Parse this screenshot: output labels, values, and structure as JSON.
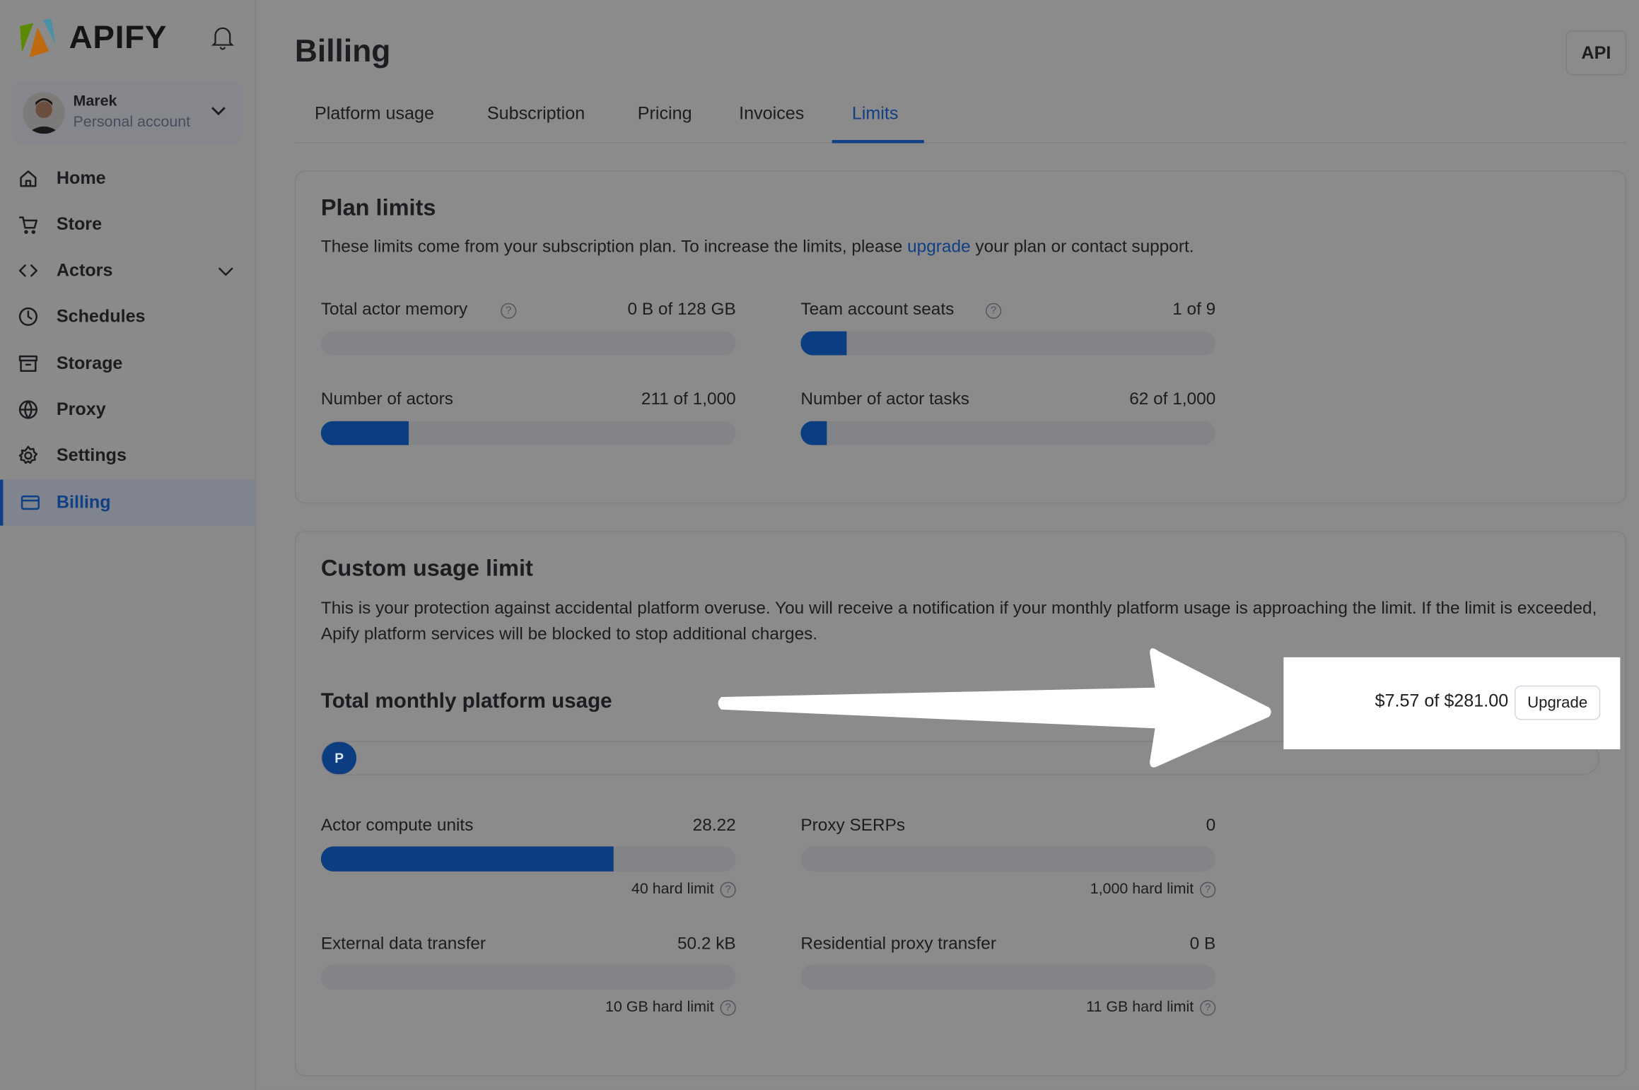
{
  "app": {
    "logo_text": "APIFY",
    "logo_colors": [
      "#5b8a00",
      "#c06a10",
      "#4a91a8"
    ]
  },
  "account": {
    "name": "Marek",
    "type": "Personal account"
  },
  "sidebar": {
    "items": [
      {
        "label": "Home",
        "icon": "home-icon"
      },
      {
        "label": "Store",
        "icon": "cart-icon"
      },
      {
        "label": "Actors",
        "icon": "code-icon",
        "expandable": true
      },
      {
        "label": "Schedules",
        "icon": "clock-icon"
      },
      {
        "label": "Storage",
        "icon": "archive-icon"
      },
      {
        "label": "Proxy",
        "icon": "globe-icon"
      },
      {
        "label": "Settings",
        "icon": "gear-icon"
      },
      {
        "label": "Billing",
        "icon": "credit-card-icon",
        "active": true
      }
    ]
  },
  "header": {
    "title": "Billing",
    "api_label": "API"
  },
  "tabs": [
    {
      "label": "Platform usage"
    },
    {
      "label": "Subscription"
    },
    {
      "label": "Pricing"
    },
    {
      "label": "Invoices"
    },
    {
      "label": "Limits",
      "active": true
    }
  ],
  "plan_limits": {
    "title": "Plan limits",
    "desc_before": "These limits come from your subscription plan. To increase the limits, please ",
    "desc_link": "upgrade",
    "desc_after": " your plan or contact support.",
    "items": [
      {
        "label": "Total actor memory",
        "value": "0 B of 128 GB",
        "percent": 0,
        "help": true
      },
      {
        "label": "Team account seats",
        "value": "1 of 9",
        "percent": 11.1,
        "help": true
      },
      {
        "label": "Number of actors",
        "value": "211 of 1,000",
        "percent": 21.1
      },
      {
        "label": "Number of actor tasks",
        "value": "62 of 1,000",
        "percent": 6.2
      }
    ]
  },
  "custom_limit": {
    "title": "Custom usage limit",
    "desc": "This is your protection against accidental platform overuse. You will receive a notification if your monthly platform usage is approaching the limit. If the limit is exceeded, Apify platform services will be blocked to stop additional charges.",
    "total_label": "Total monthly platform usage",
    "total_value": "$7.57 of $281.00",
    "total_percent": 2.7,
    "bar_badge": "P",
    "upgrade_label": "Upgrade",
    "items": [
      {
        "label": "Actor compute units",
        "value": "28.22",
        "percent": 70.6,
        "hint": "40 hard limit"
      },
      {
        "label": "Proxy SERPs",
        "value": "0",
        "percent": 0,
        "hint": "1,000 hard limit"
      },
      {
        "label": "External data transfer",
        "value": "50.2 kB",
        "percent": 0,
        "hint": "10 GB hard limit"
      },
      {
        "label": "Residential proxy transfer",
        "value": "0 B",
        "percent": 0,
        "hint": "11 GB hard limit"
      }
    ]
  },
  "colors": {
    "accent": "#0c3d80",
    "link": "#0f3f85",
    "background_dim": "#8b8b8b"
  }
}
